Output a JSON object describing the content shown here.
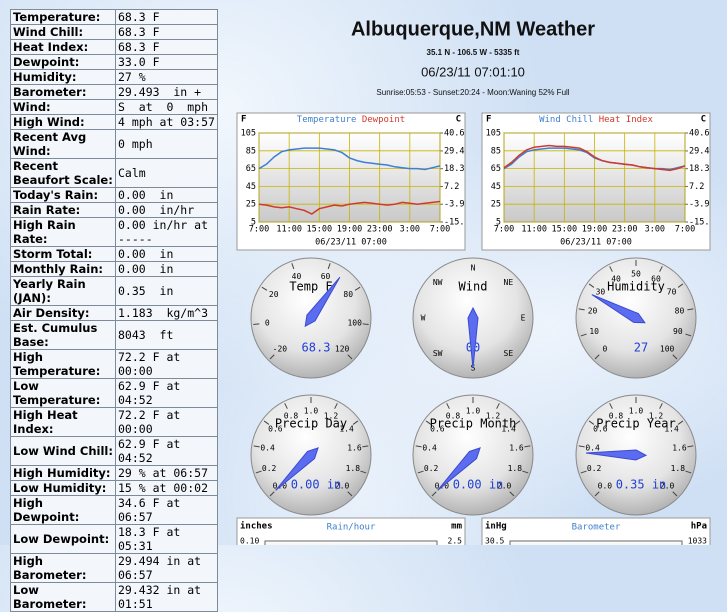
{
  "header": {
    "title": "Albuquerque,NM Weather",
    "location": "35.1 N - 106.5 W - 5335 ft",
    "datetime": "06/23/11 07:01:10",
    "astro": "Sunrise:05:53 - Sunset:20:24 - Moon:Waning 52% Full"
  },
  "table": {
    "rows": [
      [
        "Temperature:",
        "68.3 F"
      ],
      [
        "Wind Chill:",
        "68.3 F"
      ],
      [
        "Heat Index:",
        "68.3 F"
      ],
      [
        "Dewpoint:",
        "33.0 F"
      ],
      [
        "Humidity:",
        "27 %"
      ],
      [
        "Barometer:",
        "29.493  in +"
      ],
      [
        "Wind:",
        "S  at  0  mph"
      ],
      [
        "High Wind:",
        "4 mph at 03:57"
      ],
      [
        "Recent Avg Wind:",
        "0 mph"
      ],
      [
        "Recent Beaufort Scale:",
        "Calm"
      ],
      [
        "Today's Rain:",
        "0.00  in"
      ],
      [
        "Rain Rate:",
        "0.00  in/hr"
      ],
      [
        "High Rain Rate:",
        "0.00 in/hr at -----"
      ],
      [
        "Storm Total:",
        "0.00  in"
      ],
      [
        "Monthly Rain:",
        "0.00  in"
      ],
      [
        "Yearly Rain (JAN):",
        "0.35  in"
      ],
      [
        "Air Density:",
        "1.183  kg/m^3"
      ],
      [
        "Est. Cumulus Base:",
        "8043  ft"
      ],
      [
        "High Temperature:",
        "72.2 F at 00:00"
      ],
      [
        "Low Temperature:",
        "62.9 F at 04:52"
      ],
      [
        "High Heat Index:",
        "72.2 F at 00:00"
      ],
      [
        "Low Wind Chill:",
        "62.9 F at 04:52"
      ],
      [
        "High Humidity:",
        "29 % at 06:57"
      ],
      [
        "Low Humidity:",
        "15 % at 00:02"
      ],
      [
        "High Dewpoint:",
        "34.6 F at 06:57"
      ],
      [
        "Low Dewpoint:",
        "18.3 F at 05:31"
      ],
      [
        "High Barometer:",
        "29.494 in at 06:57"
      ],
      [
        "Low Barometer:",
        "29.432 in at 01:51"
      ]
    ]
  },
  "charts": [
    {
      "type": "line",
      "left_unit": "F",
      "right_unit": "C",
      "caption": "06/23/11 07:00",
      "categories": [
        "7:00",
        "11:00",
        "15:00",
        "19:00",
        "23:00",
        "3:00",
        "7:00"
      ],
      "ylim": [
        5,
        105
      ],
      "yticks": [
        105,
        85,
        65,
        45,
        25,
        5
      ],
      "y2lim": [
        -15,
        40.6
      ],
      "y2ticks": [
        40.6,
        29.4,
        18.3,
        7.2,
        -3.9,
        {
          "value": -15,
          "label": "-15."
        }
      ],
      "series": [
        {
          "name": "Temperature",
          "color": "#3f7fcf",
          "values": [
            65,
            70,
            78,
            84,
            86,
            87,
            88,
            88,
            88,
            87,
            86,
            83,
            77,
            74,
            72,
            71,
            70,
            69,
            67,
            66,
            65,
            65,
            64,
            66,
            68
          ]
        },
        {
          "name": "Dewpoint",
          "color": "#d03a2e",
          "values": [
            25,
            24,
            22,
            21,
            22,
            20,
            18,
            14,
            20,
            22,
            24,
            23,
            25,
            26,
            27,
            26,
            25,
            24,
            25,
            27,
            26,
            25,
            26,
            27,
            28
          ]
        }
      ]
    },
    {
      "type": "line",
      "left_unit": "F",
      "right_unit": "C",
      "caption": "06/23/11 07:00",
      "categories": [
        "7:00",
        "11:00",
        "15:00",
        "19:00",
        "23:00",
        "3:00",
        "7:00"
      ],
      "ylim": [
        5,
        105
      ],
      "yticks": [
        105,
        85,
        65,
        45,
        25,
        5
      ],
      "y2lim": [
        -15,
        40.6
      ],
      "y2ticks": [
        40.6,
        29.4,
        18.3,
        7.2,
        -3.9,
        {
          "value": -15,
          "label": "-15."
        }
      ],
      "series": [
        {
          "name": "Wind Chill",
          "color": "#3f7fcf",
          "values": [
            65,
            70,
            78,
            84,
            86,
            87,
            88,
            88,
            88,
            87,
            86,
            83,
            77,
            74,
            72,
            71,
            70,
            69,
            67,
            66,
            65,
            65,
            64,
            66,
            68
          ]
        },
        {
          "name": "Heat Index",
          "color": "#d03a2e",
          "values": [
            66,
            72,
            80,
            86,
            89,
            90,
            91,
            90,
            90,
            89,
            88,
            84,
            78,
            74,
            72,
            71,
            70,
            69,
            67,
            66,
            65,
            64,
            63,
            65,
            68
          ]
        }
      ]
    }
  ],
  "gauges": [
    {
      "title": "Temp F",
      "range": [
        -20,
        120
      ],
      "ticks": [
        -20,
        0,
        20,
        40,
        60,
        80,
        100,
        120
      ],
      "value": 68.3,
      "value_label": "68.3"
    },
    {
      "title": "Wind",
      "labels": [
        "N",
        "NE",
        "E",
        "SE",
        "S",
        "SW",
        "W",
        "NW"
      ],
      "direction": 180,
      "value": 0,
      "value_label": "00"
    },
    {
      "title": "Humidity",
      "range": [
        0,
        100
      ],
      "ticks": [
        0,
        10,
        20,
        30,
        40,
        50,
        60,
        70,
        80,
        90,
        100
      ],
      "value": 27,
      "value_label": "27"
    },
    {
      "title": "Precip Day",
      "range": [
        0,
        2
      ],
      "ticks": [
        {
          "value": 0,
          "label": "0.0"
        },
        0.2,
        0.4,
        0.6,
        0.8,
        {
          "value": 1,
          "label": "1.0"
        },
        1.2,
        1.4,
        1.6,
        1.8,
        {
          "value": 2,
          "label": "2.0"
        }
      ],
      "value": 0,
      "value_label": "0.00 in"
    },
    {
      "title": "Precip Month",
      "range": [
        0,
        2
      ],
      "ticks": [
        {
          "value": 0,
          "label": "0.0"
        },
        0.2,
        0.4,
        0.6,
        0.8,
        {
          "value": 1,
          "label": "1.0"
        },
        1.2,
        1.4,
        1.6,
        1.8,
        {
          "value": 2,
          "label": "2.0"
        }
      ],
      "value": 0,
      "value_label": "0.00 in"
    },
    {
      "title": "Precip Year",
      "range": [
        0,
        2
      ],
      "ticks": [
        {
          "value": 0,
          "label": "0.0"
        },
        0.2,
        0.4,
        0.6,
        0.8,
        {
          "value": 1,
          "label": "1.0"
        },
        1.2,
        1.4,
        1.6,
        1.8,
        {
          "value": 2,
          "label": "2.0"
        }
      ],
      "value": 0.35,
      "value_label": "0.35 in"
    }
  ],
  "bottom_charts": [
    {
      "left_unit": "inches",
      "title": "Rain/hour",
      "right_unit": "mm",
      "left_top": 0.1,
      "left_top_label": "0.10",
      "right_top": 2.5
    },
    {
      "left_unit": "inHg",
      "title": "Barometer",
      "right_unit": "hPa",
      "left_top": 30.5,
      "right_top": 1033
    }
  ]
}
